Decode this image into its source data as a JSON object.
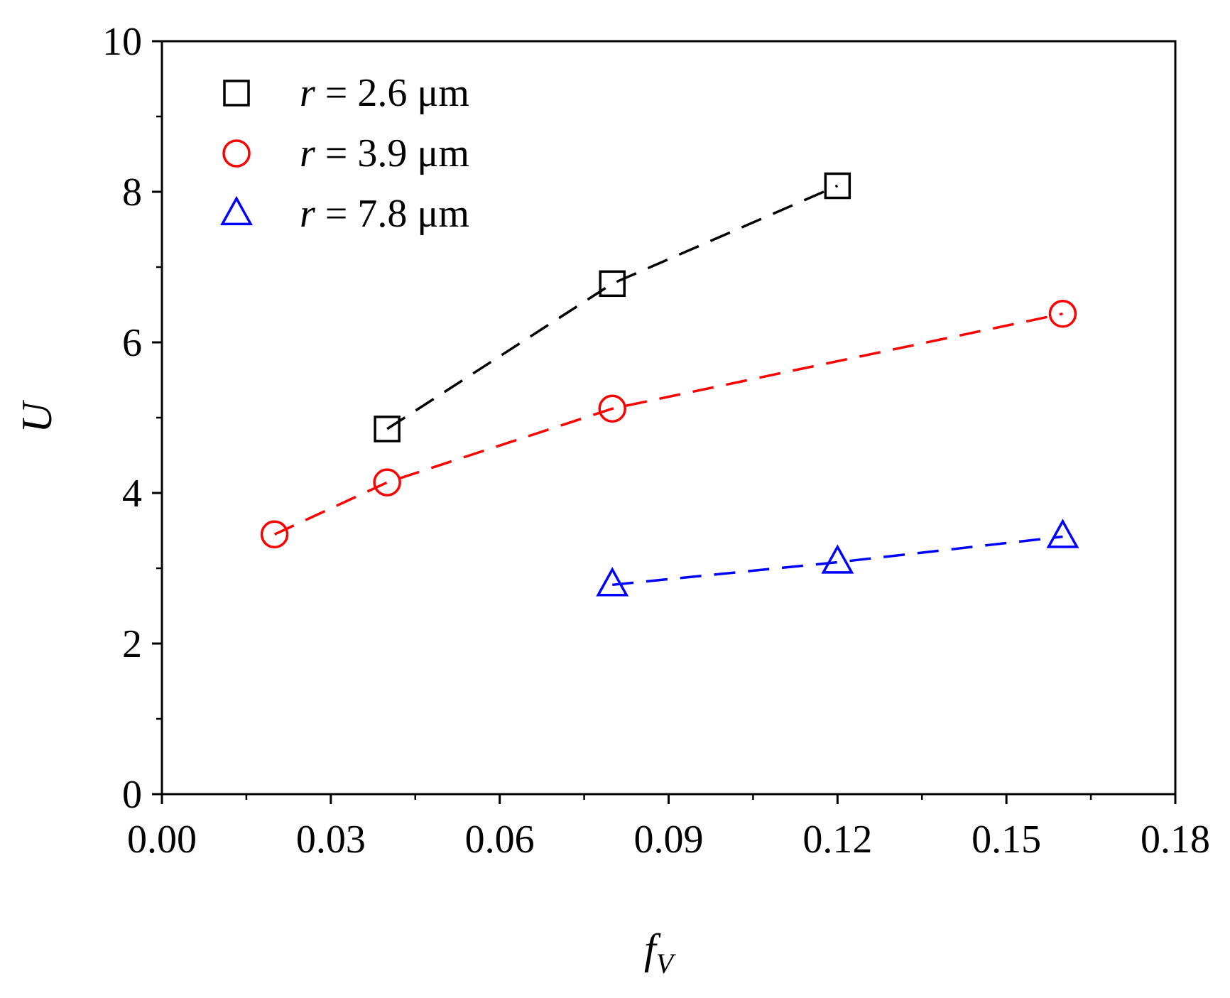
{
  "chart_data": {
    "type": "scatter",
    "title": "",
    "xlabel": "f",
    "xlabel_subscript": "V",
    "ylabel": "U",
    "xlim": [
      0.0,
      0.18
    ],
    "ylim": [
      0,
      10
    ],
    "x_ticks": [
      0.0,
      0.03,
      0.06,
      0.09,
      0.12,
      0.15,
      0.18
    ],
    "x_tick_labels": [
      "0.00",
      "0.03",
      "0.06",
      "0.09",
      "0.12",
      "0.15",
      "0.18"
    ],
    "x_minor_step": 0.015,
    "y_ticks": [
      0,
      2,
      4,
      6,
      8,
      10
    ],
    "y_tick_labels": [
      "0",
      "2",
      "4",
      "6",
      "8",
      "10"
    ],
    "y_minor_step": 1,
    "grid": false,
    "legend_position": "top-left",
    "series": [
      {
        "name": "r = 2.6 μm",
        "legend_var": "r",
        "legend_rest": " = 2.6 μm",
        "marker": "square",
        "color": "#000000",
        "x": [
          0.04,
          0.08,
          0.12
        ],
        "y": [
          4.85,
          6.78,
          8.08
        ]
      },
      {
        "name": "r = 3.9 μm",
        "legend_var": "r",
        "legend_rest": " = 3.9 μm",
        "marker": "circle",
        "color": "#ff0000",
        "x": [
          0.02,
          0.04,
          0.08,
          0.16
        ],
        "y": [
          3.45,
          4.14,
          5.12,
          6.38
        ]
      },
      {
        "name": "r = 7.8 μm",
        "legend_var": "r",
        "legend_rest": " = 7.8 μm",
        "marker": "triangle",
        "color": "#0000ff",
        "x": [
          0.08,
          0.12,
          0.16
        ],
        "y": [
          2.78,
          3.08,
          3.42
        ]
      }
    ]
  }
}
